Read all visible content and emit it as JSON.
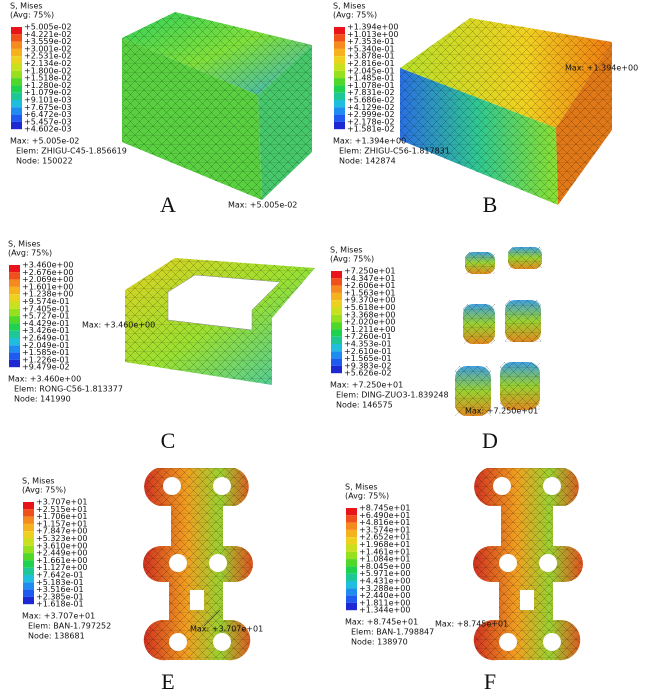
{
  "panels": [
    {
      "label": "A",
      "legend_title": "S, Mises",
      "legend_avg": "(Avg: 75%)",
      "legend_values": [
        "+5.005e-02",
        "+4.221e-02",
        "+3.559e-02",
        "+3.001e-02",
        "+2.531e-02",
        "+2.134e-02",
        "+1.800e-02",
        "+1.518e-02",
        "+1.280e-02",
        "+1.079e-02",
        "+9.101e-03",
        "+7.675e-03",
        "+6.472e-03",
        "+5.457e-03",
        "+4.602e-03"
      ],
      "max": "Max: +5.005e-02",
      "elem": "Elem: ZHIGU-C45-1.856619",
      "node": "Node: 150022",
      "annotation": "Max: +5.005e-02"
    },
    {
      "label": "B",
      "legend_title": "S, Mises",
      "legend_avg": "(Avg: 75%)",
      "legend_values": [
        "+1.394e+00",
        "+1.013e+00",
        "+7.353e-01",
        "+5.340e-01",
        "+3.878e-01",
        "+2.816e-01",
        "+2.045e-01",
        "+1.485e-01",
        "+1.078e-01",
        "+7.831e-02",
        "+5.686e-02",
        "+4.129e-02",
        "+2.999e-02",
        "+2.178e-02",
        "+1.581e-02"
      ],
      "max": "Max: +1.394e+00",
      "elem": "Elem: ZHIGU-C56-1.817831",
      "node": "Node: 142874",
      "annotation": "Max: +1.394e+00"
    },
    {
      "label": "C",
      "legend_title": "S, Mises",
      "legend_avg": "(Avg: 75%)",
      "legend_values": [
        "+3.460e+00",
        "+2.676e+00",
        "+2.069e+00",
        "+1.601e+00",
        "+1.238e+00",
        "+9.574e-01",
        "+7.405e-01",
        "+5.727e-01",
        "+4.429e-01",
        "+3.426e-01",
        "+2.649e-01",
        "+2.049e-01",
        "+1.585e-01",
        "+1.226e-01",
        "+9.479e-02"
      ],
      "max": "Max: +3.460e+00",
      "elem": "Elem: RONG-C56-1.813377",
      "node": "Node: 141990",
      "annotation": "Max: +3.460e+00"
    },
    {
      "label": "D",
      "legend_title": "S, Mises",
      "legend_avg": "(Avg: 75%)",
      "legend_values": [
        "+7.250e+01",
        "+4.347e+01",
        "+2.606e+01",
        "+1.563e+01",
        "+9.370e+00",
        "+5.618e+00",
        "+3.368e+00",
        "+2.020e+00",
        "+1.211e+00",
        "+7.260e-01",
        "+4.353e-01",
        "+2.610e-01",
        "+1.565e-01",
        "+9.383e-02",
        "+5.626e-02"
      ],
      "max": "Max: +7.250e+01",
      "elem": "Elem: DING-ZUO3-1.839248",
      "node": "Node: 146575",
      "annotation": "Max: +7.250e+01"
    },
    {
      "label": "E",
      "legend_title": "S, Mises",
      "legend_avg": "(Avg: 75%)",
      "legend_values": [
        "+3.707e+01",
        "+2.515e+01",
        "+1.706e+01",
        "+1.157e+01",
        "+7.847e+00",
        "+5.323e+00",
        "+3.610e+00",
        "+2.449e+00",
        "+1.661e+00",
        "+1.127e+00",
        "+7.642e-01",
        "+5.183e-01",
        "+3.516e-01",
        "+2.385e-01",
        "+1.618e-01"
      ],
      "max": "Max: +3.707e+01",
      "elem": "Elem: BAN-1.797252",
      "node": "Node: 138681",
      "annotation": "Max: +3.707e+01"
    },
    {
      "label": "F",
      "legend_title": "S, Mises",
      "legend_avg": "(Avg: 75%)",
      "legend_values": [
        "+8.745e+01",
        "+6.490e+01",
        "+4.816e+01",
        "+3.574e+01",
        "+2.652e+01",
        "+1.968e+01",
        "+1.461e+01",
        "+1.084e+01",
        "+8.045e+00",
        "+5.971e+00",
        "+4.431e+00",
        "+3.288e+00",
        "+2.440e+00",
        "+1.811e+00",
        "+1.344e+00"
      ],
      "max": "Max: +8.745e+01",
      "elem": "Elem: BAN-1.798847",
      "node": "Node: 138970",
      "annotation": "Max: +8.745e+01"
    }
  ]
}
